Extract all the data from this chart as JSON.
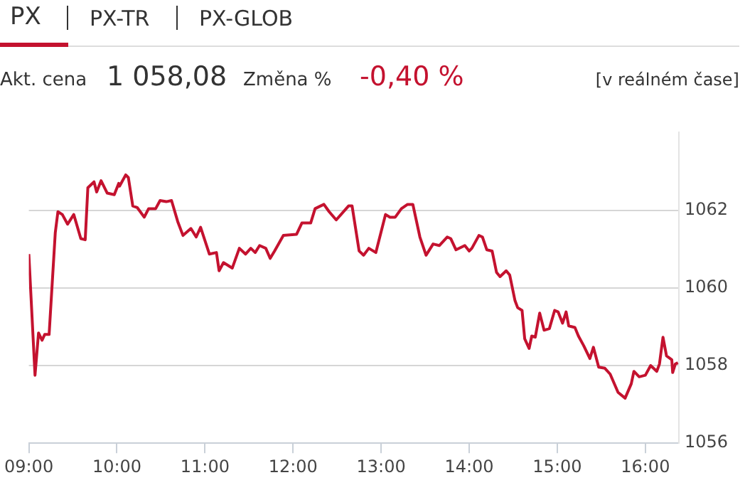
{
  "chart_data": {
    "type": "line",
    "annotations": [
      "PX",
      "PX-TR",
      "PX-GLOB",
      "Akt. cena",
      "1 058,08",
      "Změna %",
      "-0,40 %",
      "[v reálném čase]"
    ],
    "series": [
      {
        "color": "#c4122f",
        "x": [
          9.0,
          9.07,
          9.11,
          9.15,
          9.18,
          9.23,
          9.3,
          9.33,
          9.38,
          9.44,
          9.51,
          9.59,
          9.64,
          9.67,
          9.74,
          9.77,
          9.82,
          9.89,
          9.97,
          10.02,
          10.03,
          10.1,
          10.13,
          10.18,
          10.23,
          10.31,
          10.36,
          10.44,
          10.49,
          10.56,
          10.62,
          10.69,
          10.75,
          10.84,
          10.9,
          10.95,
          11.05,
          11.13,
          11.16,
          11.21,
          11.31,
          11.39,
          11.46,
          11.52,
          11.57,
          11.62,
          11.69,
          11.74,
          11.79,
          11.89,
          12.04,
          12.1,
          12.2,
          12.25,
          12.35,
          12.41,
          12.49,
          12.63,
          12.67,
          12.75,
          12.8,
          12.86,
          12.94,
          13.05,
          13.1,
          13.16,
          13.23,
          13.3,
          13.36,
          13.44,
          13.51,
          13.59,
          13.66,
          13.75,
          13.79,
          13.85,
          13.95,
          14.0,
          14.03,
          14.11,
          14.15,
          14.2,
          14.26,
          14.31,
          14.35,
          14.42,
          14.46,
          14.52,
          14.55,
          14.6,
          14.63,
          14.68,
          14.71,
          14.75,
          14.8,
          14.85,
          14.91,
          14.97,
          15.01,
          15.06,
          15.1,
          15.13,
          15.2,
          15.24,
          15.3,
          15.37,
          15.41,
          15.47,
          15.54,
          15.6,
          15.69,
          15.77,
          15.84,
          15.87,
          15.93,
          16.0,
          16.06,
          16.13,
          16.16,
          16.2,
          16.24,
          16.3,
          16.31,
          16.34,
          16.37
        ],
        "values": [
          1060.87,
          1057.75,
          1058.84,
          1058.65,
          1058.8,
          1058.8,
          1061.42,
          1061.96,
          1061.89,
          1061.64,
          1061.89,
          1061.27,
          1061.24,
          1062.58,
          1062.73,
          1062.47,
          1062.76,
          1062.44,
          1062.4,
          1062.69,
          1062.62,
          1062.91,
          1062.84,
          1062.11,
          1062.07,
          1061.82,
          1062.04,
          1062.04,
          1062.25,
          1062.22,
          1062.25,
          1061.71,
          1061.35,
          1061.53,
          1061.31,
          1061.56,
          1060.87,
          1060.91,
          1060.44,
          1060.65,
          1060.51,
          1061.02,
          1060.87,
          1061.02,
          1060.91,
          1061.09,
          1061.02,
          1060.76,
          1060.95,
          1061.35,
          1061.38,
          1061.67,
          1061.67,
          1062.04,
          1062.15,
          1061.96,
          1061.75,
          1062.11,
          1062.11,
          1060.95,
          1060.84,
          1061.02,
          1060.91,
          1061.89,
          1061.82,
          1061.82,
          1062.04,
          1062.15,
          1062.15,
          1061.31,
          1060.84,
          1061.13,
          1061.09,
          1061.31,
          1061.27,
          1060.98,
          1061.09,
          1060.95,
          1061.02,
          1061.35,
          1061.31,
          1060.98,
          1060.95,
          1060.4,
          1060.29,
          1060.44,
          1060.33,
          1059.67,
          1059.49,
          1059.42,
          1058.69,
          1058.44,
          1058.76,
          1058.73,
          1059.35,
          1058.91,
          1058.95,
          1059.42,
          1059.38,
          1059.09,
          1059.38,
          1059.02,
          1058.98,
          1058.76,
          1058.51,
          1058.18,
          1058.47,
          1057.96,
          1057.93,
          1057.78,
          1057.31,
          1057.16,
          1057.53,
          1057.85,
          1057.71,
          1057.75,
          1058.0,
          1057.85,
          1058.04,
          1058.73,
          1058.25,
          1058.15,
          1057.82,
          1058.04,
          1058.07
        ]
      }
    ],
    "xlim": [
      9,
      16.38
    ],
    "xticks": [
      {
        "value": 9,
        "label": "09:00"
      },
      {
        "value": 10,
        "label": "10:00"
      },
      {
        "value": 11,
        "label": "11:00"
      },
      {
        "value": 12,
        "label": "12:00"
      },
      {
        "value": 13,
        "label": "13:00"
      },
      {
        "value": 14,
        "label": "14:00"
      },
      {
        "value": 15,
        "label": "15:00"
      },
      {
        "value": 16,
        "label": "16:00"
      }
    ],
    "ylim": [
      1056,
      1064
    ],
    "yticks": [
      1056,
      1058,
      1060,
      1062
    ],
    "grid": "y",
    "legend": false,
    "marker": "none",
    "line_style": "solid"
  }
}
